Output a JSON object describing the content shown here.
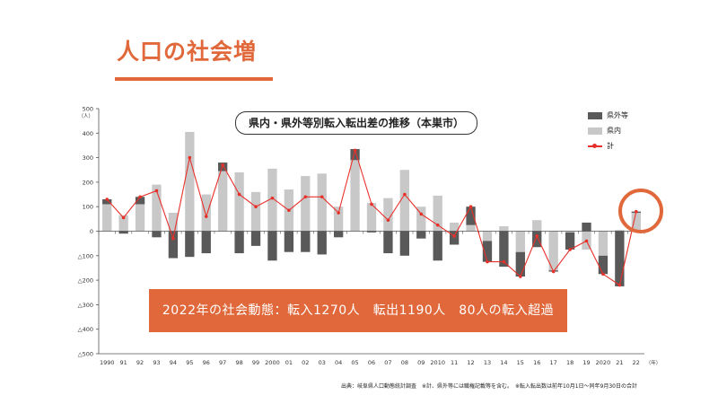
{
  "slide": {
    "title": "人口の社会増"
  },
  "callout": {
    "text": "2022年の社会動態：転入1270人　転出1190人　80人の転入超過"
  },
  "source": {
    "text": "出典：岐阜県人口動態統計調査　※計、県外等には職権記載等を含む。　※転入転出数は前年10月1日〜同年9月30日の合計"
  },
  "chart_data": {
    "type": "bar",
    "title": "県内・県外等別転入転出差の推移（本巣市）",
    "yunit": "（人）",
    "xunit": "（年）",
    "ylim": [
      -500,
      500
    ],
    "yticks": [
      "500",
      "400",
      "300",
      "200",
      "100",
      "0",
      "△100",
      "△200",
      "△300",
      "△400",
      "△500"
    ],
    "categories": [
      "1990",
      "91",
      "92",
      "93",
      "94",
      "95",
      "96",
      "97",
      "98",
      "99",
      "2000",
      "01",
      "02",
      "03",
      "04",
      "05",
      "06",
      "07",
      "08",
      "09",
      "2010",
      "11",
      "12",
      "13",
      "14",
      "15",
      "16",
      "17",
      "18",
      "19",
      "2020",
      "21",
      "22"
    ],
    "series": [
      {
        "name": "県外等",
        "kind": "bar",
        "color": "#595959",
        "values": [
          20,
          -10,
          30,
          -25,
          -110,
          -105,
          -90,
          35,
          -90,
          -60,
          -120,
          -85,
          -85,
          -95,
          -25,
          45,
          -5,
          -90,
          -100,
          -30,
          -120,
          -55,
          75,
          -85,
          -145,
          -100,
          -65,
          -5,
          -70,
          35,
          -75,
          -225,
          5
        ]
      },
      {
        "name": "県内",
        "kind": "bar",
        "color": "#c8c8c8",
        "values": [
          110,
          65,
          110,
          190,
          75,
          405,
          150,
          245,
          240,
          160,
          255,
          170,
          225,
          235,
          100,
          290,
          115,
          135,
          250,
          100,
          145,
          35,
          25,
          -40,
          20,
          -85,
          45,
          -160,
          -5,
          -75,
          -100,
          5,
          75
        ]
      },
      {
        "name": "計",
        "kind": "line",
        "color": "#e8302a",
        "values": [
          130,
          55,
          140,
          165,
          -30,
          300,
          60,
          270,
          150,
          100,
          135,
          85,
          140,
          140,
          75,
          330,
          110,
          45,
          150,
          70,
          25,
          -20,
          100,
          -125,
          -125,
          -185,
          -20,
          -165,
          -75,
          -40,
          -175,
          -220,
          80
        ]
      }
    ],
    "grid": false,
    "legend": "top-right"
  }
}
